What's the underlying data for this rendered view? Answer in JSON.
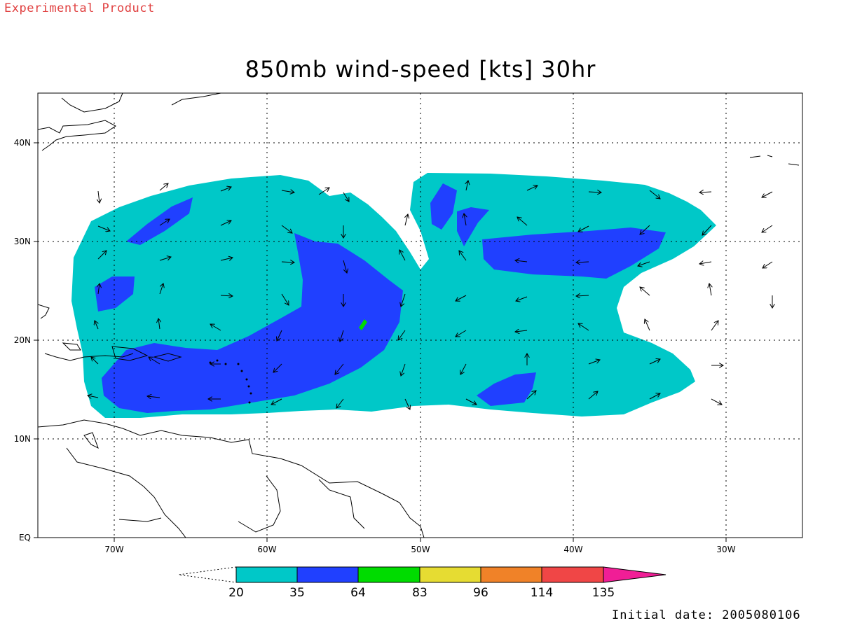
{
  "header_tag": "Experimental Product",
  "title": "850mb wind-speed [kts] 30hr",
  "initial_date": "Initial date: 2005080106",
  "lat_labels": [
    "40N",
    "30N",
    "20N",
    "10N",
    "EQ"
  ],
  "lon_labels": [
    "70W",
    "60W",
    "50W",
    "40W",
    "30W"
  ],
  "colorbar": {
    "ticks": [
      "20",
      "35",
      "64",
      "83",
      "96",
      "114",
      "135"
    ],
    "colors": [
      "#00c8c8",
      "#2040ff",
      "#00dc00",
      "#e6dc32",
      "#f08228",
      "#f04646",
      "#f01e96"
    ]
  },
  "map_extent": {
    "lon_west": -75,
    "lon_east": -25,
    "lat_south": 0,
    "lat_north": 45
  }
}
